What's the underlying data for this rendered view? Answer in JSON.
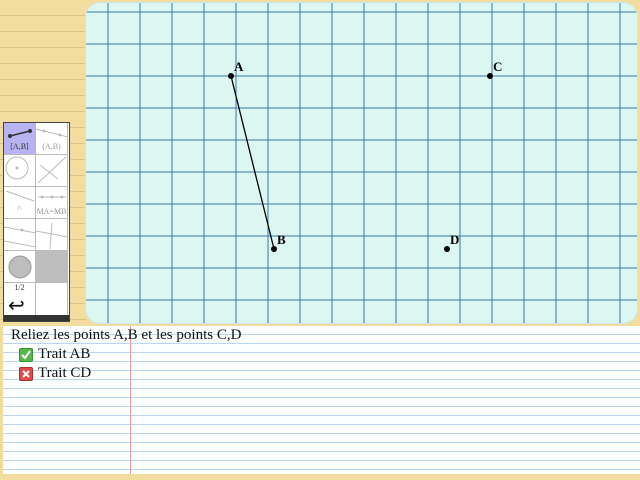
{
  "points": [
    {
      "label": "A"
    },
    {
      "label": "B"
    },
    {
      "label": "C"
    },
    {
      "label": "D"
    }
  ],
  "palette": {
    "tools": [
      {
        "name": "segment-tool",
        "label": "[A,B]",
        "selected": true
      },
      {
        "name": "line-tool",
        "label": "(A,B)"
      },
      {
        "name": "circle-tool",
        "label": ""
      },
      {
        "name": "perpendicular-tool",
        "label": ""
      },
      {
        "name": "angle-tool",
        "label": "∩"
      },
      {
        "name": "midpoint-tool",
        "label": "MA=MB"
      },
      {
        "name": "point-on-line-tool",
        "label": ""
      },
      {
        "name": "ruler-tool",
        "label": ""
      },
      {
        "name": "fill-tool",
        "label": ""
      },
      {
        "name": "gray-swatch-tool",
        "label": ""
      }
    ],
    "page_indicator": "1/2",
    "undo_symbol": "↩"
  },
  "exercise": {
    "instruction": "Reliez les points A,B et les points C,D",
    "tasks": [
      {
        "label": "Trait AB",
        "status": "done",
        "icon": "check-icon"
      },
      {
        "label": "Trait CD",
        "status": "todo",
        "icon": "cross-icon"
      }
    ]
  },
  "colors": {
    "grid_background": "#dcf6f2",
    "grid_line": "#3a78a6",
    "selected_tool": "#b8b4f4",
    "pad_background": "#f3dd9e",
    "done": "#58b94a",
    "todo": "#e24b4b"
  }
}
